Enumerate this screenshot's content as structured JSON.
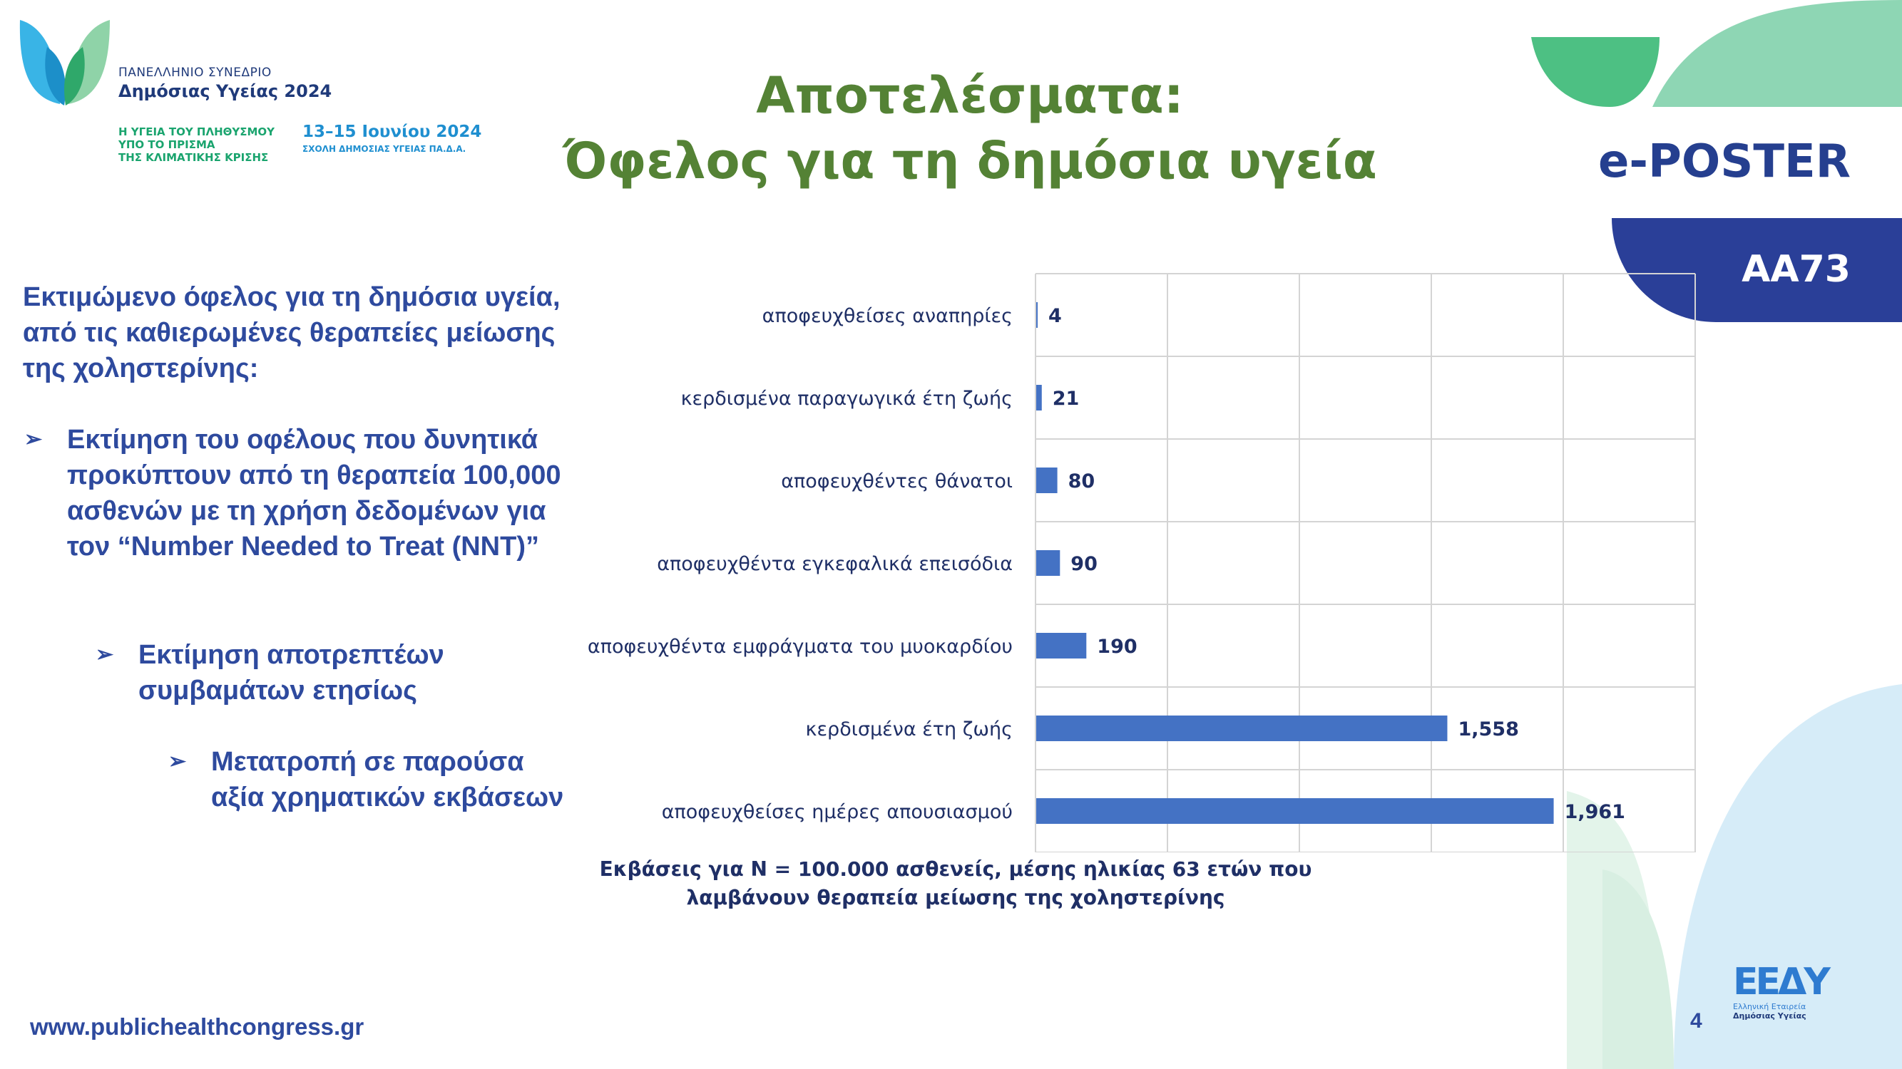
{
  "congress": {
    "line1": "ΠΑΝΕΛΛΗΝΙΟ ΣΥΝΕΔΡΙΟ",
    "line2": "Δημόσιας Υγείας 2024",
    "tagline": [
      "Η ΥΓΕΙΑ ΤΟΥ ΠΛΗΘΥΣΜΟΥ",
      "ΥΠΟ ΤΟ ΠΡΙΣΜΑ",
      "ΤΗΣ ΚΛΙΜΑΤΙΚΗΣ ΚΡΙΣΗΣ"
    ],
    "dates": "13–15 Ιουνίου 2024",
    "school": "ΣΧΟΛΗ ΔΗΜΟΣΙΑΣ ΥΓΕΙΑΣ ΠΑ.Δ.Α."
  },
  "title": {
    "line1": "Αποτελέσματα:",
    "line2": "Όφελος για τη δημόσια υγεία"
  },
  "badge": {
    "label": "e-POSTER",
    "code": "AA73"
  },
  "intro": "Εκτιμώμενο όφελος για τη δημόσια υγεία, από τις καθιερωμένες θεραπείες μείωσης της χοληστερίνης:",
  "bullets": [
    "Εκτίμηση του οφέλους που δυνητικά προκύπτουν από τη θεραπεία 100,000 ασθενών με τη χρήση δεδομένων για τον “Number Needed to Treat (NNT)”",
    "Εκτίμηση αποτρεπτέων συμβαμάτων ετησίως",
    "Μετατροπή σε παρούσα αξία χρηματικών εκβάσεων"
  ],
  "bullet_glyph": "➢",
  "chart_data": {
    "type": "bar",
    "orientation": "horizontal",
    "categories": [
      "αποφευχθείσες αναπηρίες",
      "κερδισμένα παραγωγικά έτη ζωής",
      "αποφευχθέντες θάνατοι",
      "αποφευχθέντα εγκεφαλικά επεισόδια",
      "αποφευχθέντα εμφράγματα του μυοκαρδίου",
      "κερδισμένα έτη ζωής",
      "αποφευχθείσες ημέρες απουσιασμού"
    ],
    "values": [
      4,
      21,
      80,
      90,
      190,
      1558,
      1961
    ],
    "value_labels": [
      "4",
      "21",
      "80",
      "90",
      "190",
      "1,558",
      "1,961"
    ],
    "xlim": [
      0,
      2500
    ],
    "x_gridlines": [
      500,
      1000,
      1500,
      2000
    ],
    "grid": true,
    "bar_color": "#4472c4",
    "caption": [
      "Εκβάσεις για Ν = 100.000 ασθενείς, μέσης ηλικίας 63 ετών που",
      "λαμβάνουν θεραπεία μείωσης της χοληστερίνης"
    ]
  },
  "footer": {
    "url": "www.publichealthcongress.gr",
    "page": "4"
  },
  "sponsor": {
    "mark": "ΕΕΔΥ",
    "line1": "Ελληνική Εταιρεία",
    "line2": "Δημόσιας Υγείας"
  },
  "colors": {
    "title": "#548235",
    "text": "#2e4a9e",
    "badge": "#2a3f98"
  }
}
